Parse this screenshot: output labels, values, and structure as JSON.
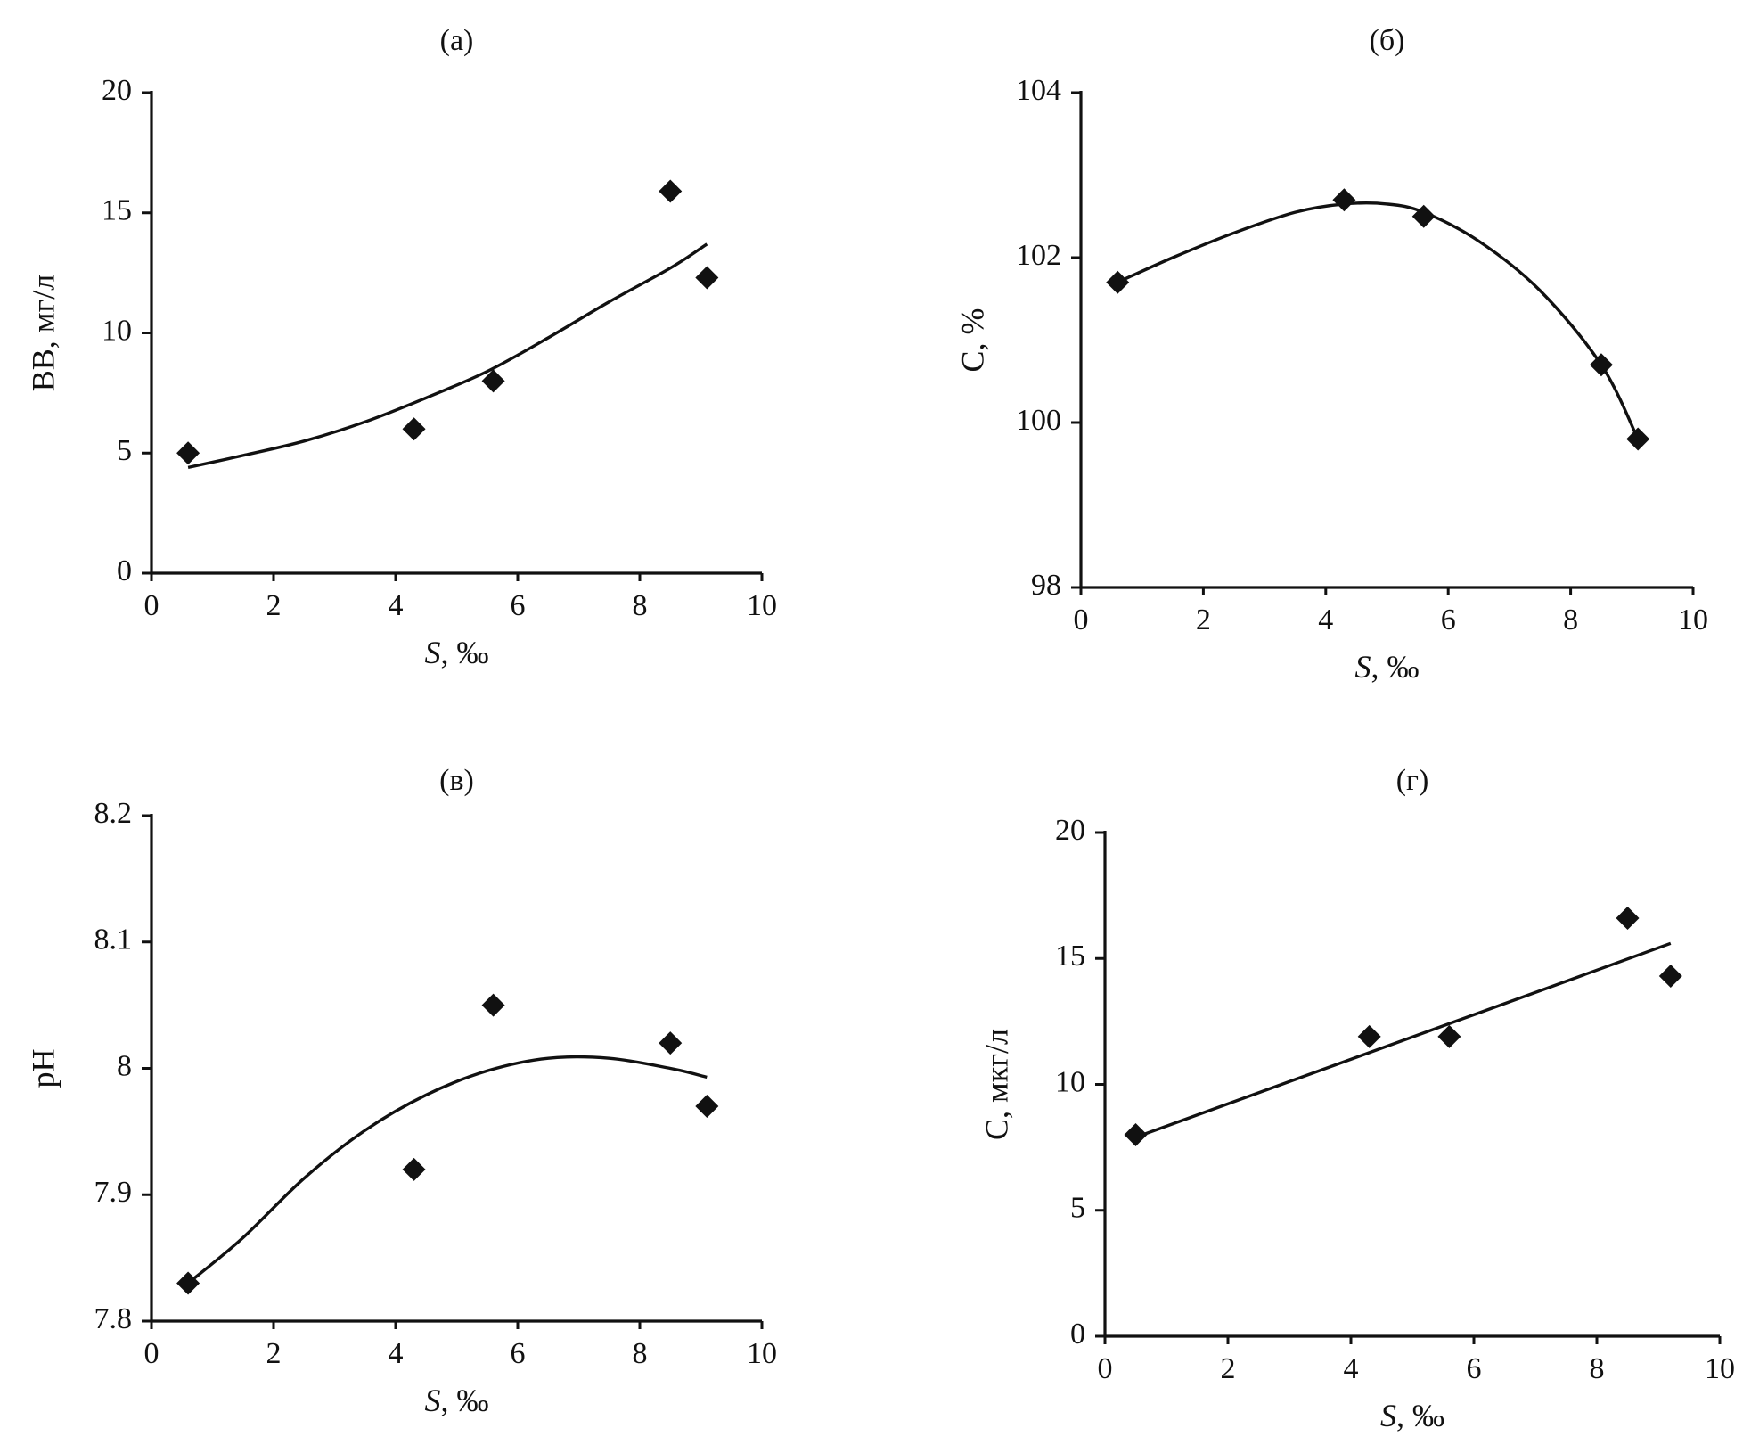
{
  "chart_data": [
    {
      "type": "scatter",
      "panel_label": "(а)",
      "xlabel_var": "S",
      "xlabel_rest": ", ‰",
      "ylabel": "ВВ, мг/л",
      "xlim": [
        0,
        10
      ],
      "ylim": [
        0,
        20
      ],
      "xticks": [
        0,
        2,
        4,
        6,
        8,
        10
      ],
      "yticks": [
        0,
        5,
        10,
        15,
        20
      ],
      "xtick_labels": [
        "0",
        "2",
        "4",
        "6",
        "8",
        "10"
      ],
      "ytick_labels": [
        "0",
        "5",
        "10",
        "15",
        "20"
      ],
      "x": [
        0.6,
        4.3,
        5.6,
        8.5,
        9.1
      ],
      "y": [
        5.0,
        6.0,
        8.0,
        15.9,
        12.3
      ],
      "trend": {
        "kind": "exponential",
        "x": [
          0.6,
          1.5,
          2.5,
          3.5,
          4.5,
          5.5,
          6.5,
          7.5,
          8.5,
          9.1
        ],
        "y": [
          4.4,
          4.9,
          5.5,
          6.3,
          7.3,
          8.4,
          9.8,
          11.3,
          12.7,
          13.7
        ]
      },
      "grid": false,
      "legend": false
    },
    {
      "type": "scatter",
      "panel_label": "(б)",
      "xlabel_var": "S",
      "xlabel_rest": ", ‰",
      "ylabel": "С, %",
      "xlim": [
        0,
        10
      ],
      "ylim": [
        98,
        104
      ],
      "xticks": [
        0,
        2,
        4,
        6,
        8,
        10
      ],
      "yticks": [
        98,
        100,
        102,
        104
      ],
      "xtick_labels": [
        "0",
        "2",
        "4",
        "6",
        "8",
        "10"
      ],
      "ytick_labels": [
        "98",
        "100",
        "102",
        "104"
      ],
      "x": [
        0.6,
        4.3,
        5.6,
        8.5,
        9.1
      ],
      "y": [
        101.7,
        102.7,
        102.5,
        100.7,
        99.8
      ],
      "trend": {
        "kind": "polynomial",
        "x": [
          0.6,
          1.5,
          2.5,
          3.5,
          4.3,
          5.0,
          5.6,
          6.5,
          7.5,
          8.5,
          9.1
        ],
        "y": [
          101.7,
          102.0,
          102.3,
          102.55,
          102.65,
          102.65,
          102.55,
          102.2,
          101.6,
          100.7,
          99.8
        ]
      },
      "grid": false,
      "legend": false
    },
    {
      "type": "scatter",
      "panel_label": "(в)",
      "xlabel_var": "S",
      "xlabel_rest": ", ‰",
      "ylabel": "pH",
      "xlim": [
        0,
        10
      ],
      "ylim": [
        7.8,
        8.2
      ],
      "xticks": [
        0,
        2,
        4,
        6,
        8,
        10
      ],
      "yticks": [
        7.8,
        7.9,
        8.0,
        8.1,
        8.2
      ],
      "xtick_labels": [
        "0",
        "2",
        "4",
        "6",
        "8",
        "10"
      ],
      "ytick_labels": [
        "7.8",
        "7.9",
        "8",
        "8.1",
        "8.2"
      ],
      "x": [
        0.6,
        4.3,
        5.6,
        8.5,
        9.1
      ],
      "y": [
        7.83,
        7.92,
        8.05,
        8.02,
        7.97
      ],
      "trend": {
        "kind": "polynomial",
        "x": [
          0.6,
          1.5,
          2.5,
          3.5,
          4.5,
          5.5,
          6.5,
          7.5,
          8.5,
          9.1
        ],
        "y": [
          7.83,
          7.866,
          7.913,
          7.951,
          7.979,
          7.998,
          8.008,
          8.008,
          8.0,
          7.993
        ]
      },
      "grid": false,
      "legend": false
    },
    {
      "type": "scatter",
      "panel_label": "(г)",
      "xlabel_var": "S",
      "xlabel_rest": ", ‰",
      "ylabel": "С, мкг/л",
      "xlim": [
        0,
        10
      ],
      "ylim": [
        0,
        20
      ],
      "xticks": [
        0,
        2,
        4,
        6,
        8,
        10
      ],
      "yticks": [
        0,
        5,
        10,
        15,
        20
      ],
      "xtick_labels": [
        "0",
        "2",
        "4",
        "6",
        "8",
        "10"
      ],
      "ytick_labels": [
        "0",
        "5",
        "10",
        "15",
        "20"
      ],
      "x": [
        0.5,
        4.3,
        5.6,
        8.5,
        9.2
      ],
      "y": [
        8.0,
        11.9,
        11.9,
        16.6,
        14.3
      ],
      "trend": {
        "kind": "linear",
        "x": [
          0.5,
          9.2
        ],
        "y": [
          7.9,
          15.6
        ]
      },
      "grid": false,
      "legend": false
    }
  ]
}
